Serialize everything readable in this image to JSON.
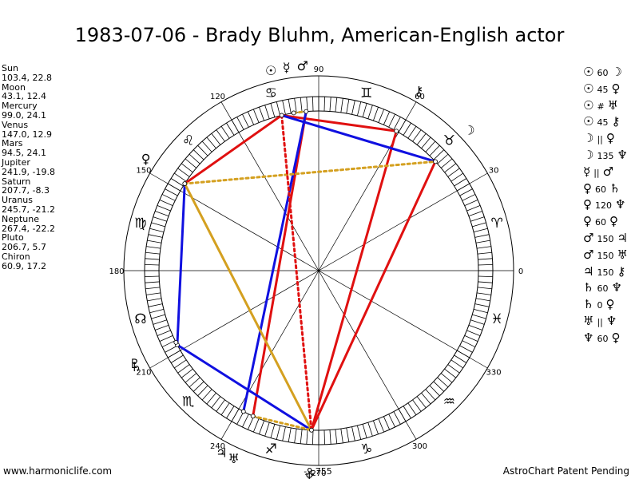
{
  "title": "1983-07-06 - Brady Bluhm, American-English actor",
  "footer": {
    "left": "www.harmoniclife.com",
    "right": "AstroChart Patent Pending"
  },
  "planets": [
    {
      "name": "Sun",
      "values": "103.4, 22.8"
    },
    {
      "name": "Moon",
      "values": "43.1, 12.4"
    },
    {
      "name": "Mercury",
      "values": "99.0, 24.1"
    },
    {
      "name": "Venus",
      "values": "147.0, 12.9"
    },
    {
      "name": "Mars",
      "values": "94.5, 24.1"
    },
    {
      "name": "Jupiter",
      "values": "241.9, -19.8"
    },
    {
      "name": "Saturn",
      "values": "207.7, -8.3"
    },
    {
      "name": "Uranus",
      "values": "245.7, -21.2"
    },
    {
      "name": "Neptune",
      "values": "267.4, -22.2"
    },
    {
      "name": "Pluto",
      "values": "206.7, 5.7"
    },
    {
      "name": "Chiron",
      "values": "60.9, 17.2"
    }
  ],
  "aspects": [
    {
      "p1": "☉",
      "angle": "60",
      "p2": "☽"
    },
    {
      "p1": "☉",
      "angle": "45",
      "p2": "♀"
    },
    {
      "p1": "☉",
      "angle": "#",
      "p2": "♅"
    },
    {
      "p1": "☉",
      "angle": "45",
      "p2": "⚷"
    },
    {
      "p1": "☽",
      "angle": "||",
      "p2": "♀"
    },
    {
      "p1": "☽",
      "angle": "135",
      "p2": "♆"
    },
    {
      "p1": "☿",
      "angle": "||",
      "p2": "♂"
    },
    {
      "p1": "♀",
      "angle": "60",
      "p2": "♄"
    },
    {
      "p1": "♀",
      "angle": "120",
      "p2": "♆"
    },
    {
      "p1": "♀",
      "angle": "60",
      "p2": "♀"
    },
    {
      "p1": "♂",
      "angle": "150",
      "p2": "♃"
    },
    {
      "p1": "♂",
      "angle": "150",
      "p2": "♅"
    },
    {
      "p1": "♃",
      "angle": "150",
      "p2": "⚷"
    },
    {
      "p1": "♄",
      "angle": "60",
      "p2": "♆"
    },
    {
      "p1": "♄",
      "angle": "0",
      "p2": "♀"
    },
    {
      "p1": "♅",
      "angle": "||",
      "p2": "♆"
    },
    {
      "p1": "♆",
      "angle": "60",
      "p2": "♀"
    }
  ],
  "wheel": {
    "degree_labels": [
      "0",
      "30",
      "60",
      "90",
      "120",
      "150",
      "180",
      "210",
      "240",
      "270",
      "300",
      "330"
    ],
    "signs": [
      {
        "symbol": "♈",
        "lon": 15
      },
      {
        "symbol": "♉",
        "lon": 45
      },
      {
        "symbol": "♊",
        "lon": 75
      },
      {
        "symbol": "♋",
        "lon": 105
      },
      {
        "symbol": "♌",
        "lon": 135
      },
      {
        "symbol": "♍",
        "lon": 165
      },
      {
        "symbol": "☊",
        "lon": 195
      },
      {
        "symbol": "♏",
        "lon": 225
      },
      {
        "symbol": "♐",
        "lon": 255
      },
      {
        "symbol": "♑",
        "lon": 285
      },
      {
        "symbol": "♒",
        "lon": 315
      },
      {
        "symbol": "♓",
        "lon": 345
      }
    ],
    "bodies": [
      {
        "symbol": "☉",
        "lon": 103.4
      },
      {
        "symbol": "☽",
        "lon": 43.1
      },
      {
        "symbol": "☿",
        "lon": 99.0
      },
      {
        "symbol": "♀",
        "lon": 147.0
      },
      {
        "symbol": "♂",
        "lon": 94.5
      },
      {
        "symbol": "♃",
        "lon": 241.9
      },
      {
        "symbol": "♄",
        "lon": 207.7
      },
      {
        "symbol": "♅",
        "lon": 245.7
      },
      {
        "symbol": "♆",
        "lon": 267.4
      },
      {
        "symbol": "♇",
        "lon": 206.7
      },
      {
        "symbol": "⚷",
        "lon": 60.9
      }
    ],
    "bottom_label": "-9,755",
    "lines": [
      {
        "from": "Sun",
        "to": "Chiron",
        "color": "#e01010",
        "style": "solid"
      },
      {
        "from": "Chiron",
        "to": "Neptune",
        "color": "#e01010",
        "style": "solid"
      },
      {
        "from": "Neptune",
        "to": "Moon",
        "color": "#e01010",
        "style": "solid"
      },
      {
        "from": "Venus",
        "to": "Sun",
        "color": "#e01010",
        "style": "solid"
      },
      {
        "from": "Mars",
        "to": "Uranus",
        "color": "#e01010",
        "style": "solid"
      },
      {
        "from": "Mars",
        "to": "Jupiter",
        "color": "#1010e0",
        "style": "solid"
      },
      {
        "from": "Sun",
        "to": "Moon",
        "color": "#1010e0",
        "style": "solid"
      },
      {
        "from": "Venus",
        "to": "Saturn",
        "color": "#1010e0",
        "style": "solid"
      },
      {
        "from": "Saturn",
        "to": "Neptune",
        "color": "#1010e0",
        "style": "solid"
      },
      {
        "from": "Venus",
        "to": "Neptune",
        "color": "#d4a020",
        "style": "solid"
      },
      {
        "from": "Venus",
        "to": "Moon",
        "color": "#d4a020",
        "style": "dotted"
      },
      {
        "from": "Mercury",
        "to": "Mars",
        "color": "#d4a020",
        "style": "dotted"
      },
      {
        "from": "Uranus",
        "to": "Neptune",
        "color": "#d4a020",
        "style": "dotted"
      },
      {
        "from": "Sun",
        "to": "Neptune",
        "color": "#e01010",
        "style": "dotted"
      }
    ]
  }
}
